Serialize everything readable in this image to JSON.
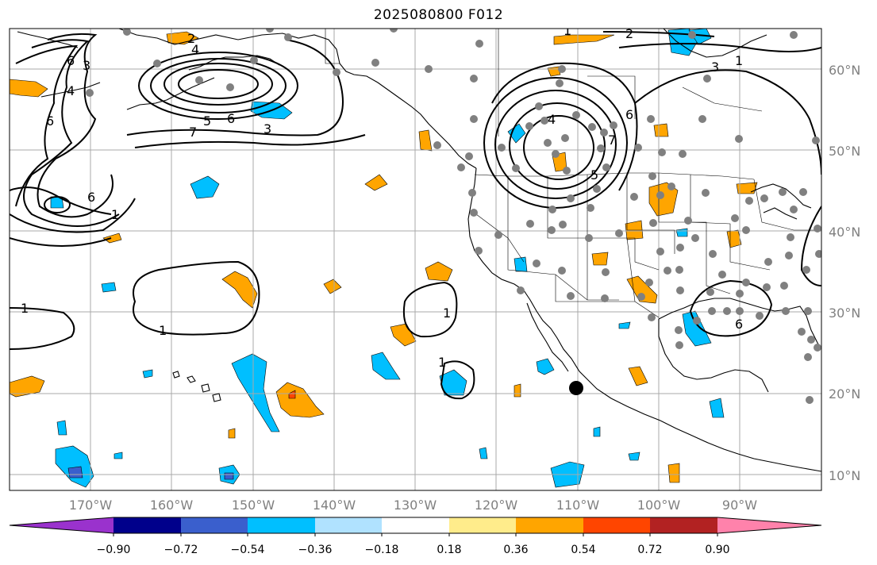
{
  "title": "2025080800 F012",
  "lat_labels": [
    "60°N",
    "50°N",
    "40°N",
    "30°N",
    "20°N",
    "10°N"
  ],
  "lon_labels": [
    "170°W",
    "160°W",
    "150°W",
    "140°W",
    "130°W",
    "120°W",
    "110°W",
    "100°W",
    "90°W"
  ],
  "colorbar": {
    "tick_labels": [
      "−0.90",
      "−0.72",
      "−0.54",
      "−0.36",
      "−0.18",
      "0.18",
      "0.36",
      "0.54",
      "0.72",
      "0.90"
    ],
    "colors": [
      "#9a32cd",
      "#00008b",
      "#3a5fcd",
      "#00bfff",
      "#b0e2ff",
      "#ffffff",
      "#ffec8b",
      "#ffa500",
      "#ff4500",
      "#b22222",
      "#ff82ab"
    ]
  },
  "contour_labels": [
    "2",
    "4",
    "6",
    "3",
    "4",
    "6",
    "5",
    "6",
    "3",
    "7",
    "6",
    "1",
    "1",
    "1",
    "1",
    "1",
    "2",
    "1",
    "3",
    "4",
    "5",
    "6",
    "7",
    "6",
    "1"
  ]
}
